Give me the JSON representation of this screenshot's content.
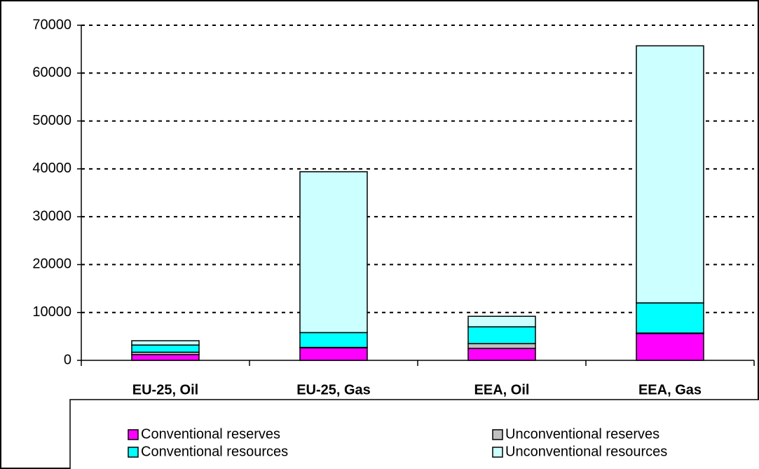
{
  "chart_data": {
    "type": "stacked-bar",
    "categories": [
      "EU-25, Oil",
      "EU-25, Gas",
      "EEA, Oil",
      "EEA, Gas"
    ],
    "series": [
      {
        "name": "Conventional reserves",
        "color": "#ff00ff",
        "values": [
          1200,
          2600,
          2500,
          5600
        ]
      },
      {
        "name": "Unconventional reserves",
        "color": "#c0c0c0",
        "values": [
          500,
          100,
          1000,
          100
        ]
      },
      {
        "name": "Conventional resources",
        "color": "#00ffff",
        "values": [
          1500,
          3100,
          3500,
          6300
        ]
      },
      {
        "name": "Unconventional resources",
        "color": "#ccffff",
        "values": [
          900,
          33600,
          2200,
          53700
        ]
      }
    ],
    "ylim": [
      0,
      70000
    ],
    "yticks": [
      0,
      10000,
      20000,
      30000,
      40000,
      50000,
      60000,
      70000
    ],
    "grid": true
  }
}
